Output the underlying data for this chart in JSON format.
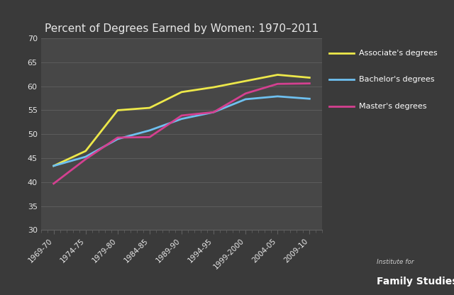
{
  "title": "Percent of Degrees Earned by Women: 1970–2011",
  "background_color": "#3a3a3a",
  "plot_bg_color": "#474747",
  "grid_color": "#606060",
  "text_color": "#e8e8e8",
  "ylim": [
    30,
    70
  ],
  "yticks": [
    30,
    35,
    40,
    45,
    50,
    55,
    60,
    65,
    70
  ],
  "x_labels": [
    "1969-70",
    "1974-75",
    "1979-80",
    "1984-85",
    "1989-90",
    "1994-95",
    "1999-2000",
    "2004-05",
    "2009-10"
  ],
  "associates": [
    43.4,
    46.5,
    55.0,
    55.5,
    58.8,
    59.8,
    61.1,
    62.4,
    61.8
  ],
  "bachelors": [
    43.4,
    45.3,
    49.0,
    50.8,
    53.2,
    54.6,
    57.3,
    57.9,
    57.4
  ],
  "masters": [
    39.7,
    44.8,
    49.3,
    49.4,
    53.9,
    54.6,
    58.5,
    60.5,
    60.6
  ],
  "associates_color": "#ede84a",
  "bachelors_color": "#6ec0f0",
  "masters_color": "#d44090",
  "line_width": 2.0,
  "legend_text_color": "#ffffff",
  "watermark_italic": "Institute for",
  "watermark_bold": "Family Studies",
  "num_minor_ticks": 40
}
